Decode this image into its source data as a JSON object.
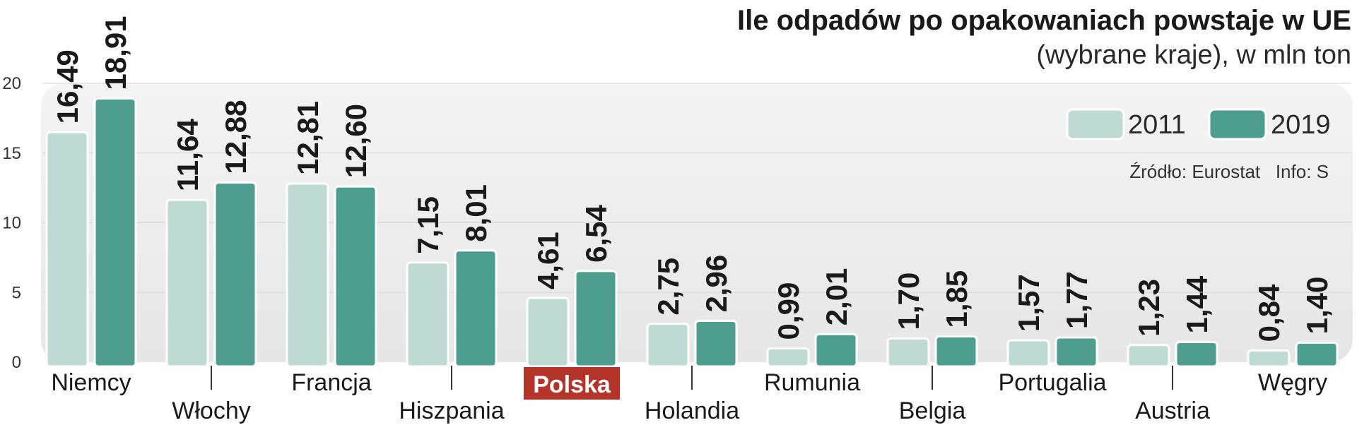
{
  "chart_data": {
    "type": "bar",
    "title": "Ile odpadów po opakowaniach powstaje w UE",
    "subtitle": "(wybrane kraje), w mln ton",
    "source": "Źródło: Eurostat   Info: S",
    "categories": [
      "Niemcy",
      "Włochy",
      "Francja",
      "Hiszpania",
      "Polska",
      "Holandia",
      "Rumunia",
      "Belgia",
      "Portugalia",
      "Austria",
      "Węgry"
    ],
    "highlight_category": "Polska",
    "series": [
      {
        "name": "2011",
        "color": "#bfd9d3",
        "values": [
          16.49,
          11.64,
          12.81,
          7.15,
          4.61,
          2.75,
          0.99,
          1.7,
          1.57,
          1.23,
          0.84
        ],
        "labels": [
          "16,49",
          "11,64",
          "12,81",
          "7,15",
          "4,61",
          "2,75",
          "0,99",
          "1,70",
          "1,57",
          "1,23",
          "0,84"
        ]
      },
      {
        "name": "2019",
        "color": "#4e9e90",
        "values": [
          18.91,
          12.88,
          12.6,
          8.01,
          6.54,
          2.96,
          2.01,
          1.85,
          1.77,
          1.44,
          1.4
        ],
        "labels": [
          "18,91",
          "12,88",
          "12,60",
          "8,01",
          "6,54",
          "2,96",
          "2,01",
          "1,85",
          "1,77",
          "1,44",
          "1,40"
        ]
      }
    ],
    "ylim": [
      0,
      20
    ],
    "yticks": [
      0,
      5,
      10,
      15,
      20
    ],
    "legend_position": "top-right",
    "colors": {
      "plot_bg": "#ebebeb",
      "highlight_bg": "#b5342a",
      "text": "#1a1a1a"
    }
  }
}
